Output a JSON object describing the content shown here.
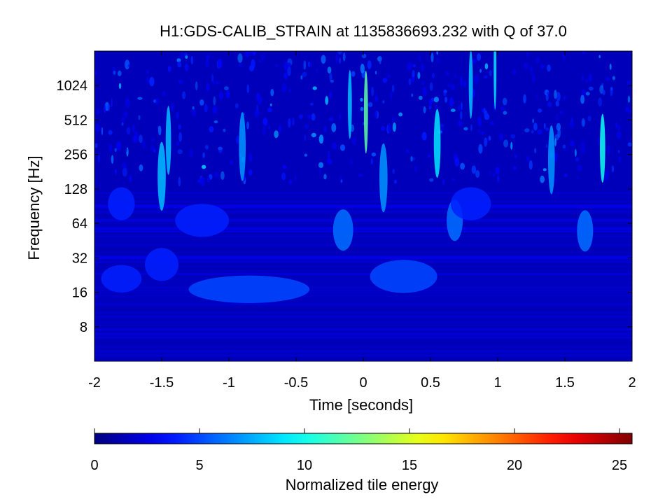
{
  "chart_data": {
    "type": "heatmap",
    "title": "H1:GDS-CALIB_STRAIN at 1135836693.232 with Q of 37.0",
    "xlabel": "Time [seconds]",
    "ylabel": "Frequency [Hz]",
    "x_scale": "linear",
    "y_scale": "log2",
    "xlim": [
      -2,
      2
    ],
    "ylim": [
      4,
      2048
    ],
    "x_ticks": [
      -2,
      -1.5,
      -1,
      -0.5,
      0,
      0.5,
      1,
      1.5,
      2
    ],
    "x_tick_labels": [
      "-2",
      "-1.5",
      "-1",
      "-0.5",
      "0",
      "0.5",
      "1",
      "1.5",
      "2"
    ],
    "y_ticks": [
      8,
      16,
      32,
      64,
      128,
      256,
      512,
      1024
    ],
    "y_tick_labels": [
      "8",
      "16",
      "32",
      "64",
      "128",
      "256",
      "512",
      "1024"
    ],
    "grid": false,
    "background_level": 1.5,
    "colorbar": {
      "label": "Normalized tile energy",
      "range": [
        0,
        25.6
      ],
      "ticks": [
        0,
        5,
        10,
        15,
        20,
        25
      ],
      "tick_labels": [
        "0",
        "5",
        "10",
        "15",
        "20",
        "25"
      ],
      "colormap": "jet"
    },
    "features": [
      {
        "t": -0.85,
        "f": 17,
        "dt": 0.9,
        "df": 0.1,
        "value": 5
      },
      {
        "t": 0.3,
        "f": 22,
        "dt": 0.5,
        "df": 0.12,
        "value": 5
      },
      {
        "t": -1.8,
        "f": 21,
        "dt": 0.3,
        "df": 0.1,
        "value": 4
      },
      {
        "t": -1.5,
        "f": 28,
        "dt": 0.25,
        "df": 0.12,
        "value": 4
      },
      {
        "t": -1.2,
        "f": 68,
        "dt": 0.4,
        "df": 0.12,
        "value": 4
      },
      {
        "t": -0.15,
        "f": 56,
        "dt": 0.15,
        "df": 0.15,
        "value": 6
      },
      {
        "t": 0.68,
        "f": 68,
        "dt": 0.12,
        "df": 0.15,
        "value": 6
      },
      {
        "t": 1.65,
        "f": 55,
        "dt": 0.12,
        "df": 0.15,
        "value": 6
      },
      {
        "t": -1.8,
        "f": 95,
        "dt": 0.2,
        "df": 0.12,
        "value": 4
      },
      {
        "t": 0.8,
        "f": 95,
        "dt": 0.3,
        "df": 0.12,
        "value": 4
      },
      {
        "t": 0.02,
        "f": 600,
        "dt": 0.03,
        "df": 0.3,
        "value": 12
      },
      {
        "t": 1.78,
        "f": 290,
        "dt": 0.04,
        "df": 0.25,
        "value": 10
      },
      {
        "t": 0.55,
        "f": 320,
        "dt": 0.05,
        "df": 0.25,
        "value": 9
      },
      {
        "t": -1.5,
        "f": 165,
        "dt": 0.06,
        "df": 0.25,
        "value": 8
      },
      {
        "t": 0.15,
        "f": 160,
        "dt": 0.06,
        "df": 0.25,
        "value": 7
      },
      {
        "t": 0.98,
        "f": 1450,
        "dt": 0.02,
        "df": 0.3,
        "value": 9
      },
      {
        "t": -1.45,
        "f": 340,
        "dt": 0.04,
        "df": 0.25,
        "value": 8
      },
      {
        "t": -0.9,
        "f": 300,
        "dt": 0.05,
        "df": 0.25,
        "value": 7
      },
      {
        "t": -0.1,
        "f": 700,
        "dt": 0.03,
        "df": 0.25,
        "value": 8
      },
      {
        "t": 1.4,
        "f": 230,
        "dt": 0.05,
        "df": 0.25,
        "value": 7
      },
      {
        "t": 0.8,
        "f": 1050,
        "dt": 0.03,
        "df": 0.25,
        "value": 8
      }
    ]
  }
}
